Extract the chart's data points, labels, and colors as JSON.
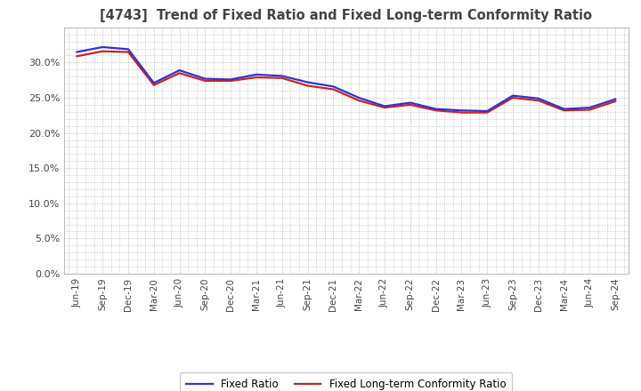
{
  "title": "[4743]  Trend of Fixed Ratio and Fixed Long-term Conformity Ratio",
  "x_labels": [
    "Jun-19",
    "Sep-19",
    "Dec-19",
    "Mar-20",
    "Jun-20",
    "Sep-20",
    "Dec-20",
    "Mar-21",
    "Jun-21",
    "Sep-21",
    "Dec-21",
    "Mar-22",
    "Jun-22",
    "Sep-22",
    "Dec-22",
    "Mar-23",
    "Jun-23",
    "Sep-23",
    "Dec-23",
    "Mar-24",
    "Jun-24",
    "Sep-24"
  ],
  "fixed_ratio": [
    31.5,
    32.2,
    31.9,
    27.1,
    28.9,
    27.7,
    27.6,
    28.3,
    28.1,
    27.2,
    26.6,
    25.0,
    23.8,
    24.3,
    23.4,
    23.2,
    23.1,
    25.3,
    24.9,
    23.4,
    23.6,
    24.8
  ],
  "fixed_lt_ratio": [
    30.9,
    31.6,
    31.5,
    26.8,
    28.5,
    27.4,
    27.4,
    27.9,
    27.8,
    26.7,
    26.2,
    24.6,
    23.6,
    24.0,
    23.2,
    22.9,
    22.9,
    25.0,
    24.6,
    23.2,
    23.3,
    24.5
  ],
  "fixed_ratio_color": "#3333cc",
  "fixed_lt_ratio_color": "#cc2222",
  "background_color": "#ffffff",
  "grid_color": "#999999",
  "ylim": [
    0,
    35
  ],
  "yticks": [
    0,
    5,
    10,
    15,
    20,
    25,
    30
  ],
  "legend_fixed": "Fixed Ratio",
  "legend_fixed_lt": "Fixed Long-term Conformity Ratio",
  "title_color": "#444444",
  "line_width": 1.6
}
